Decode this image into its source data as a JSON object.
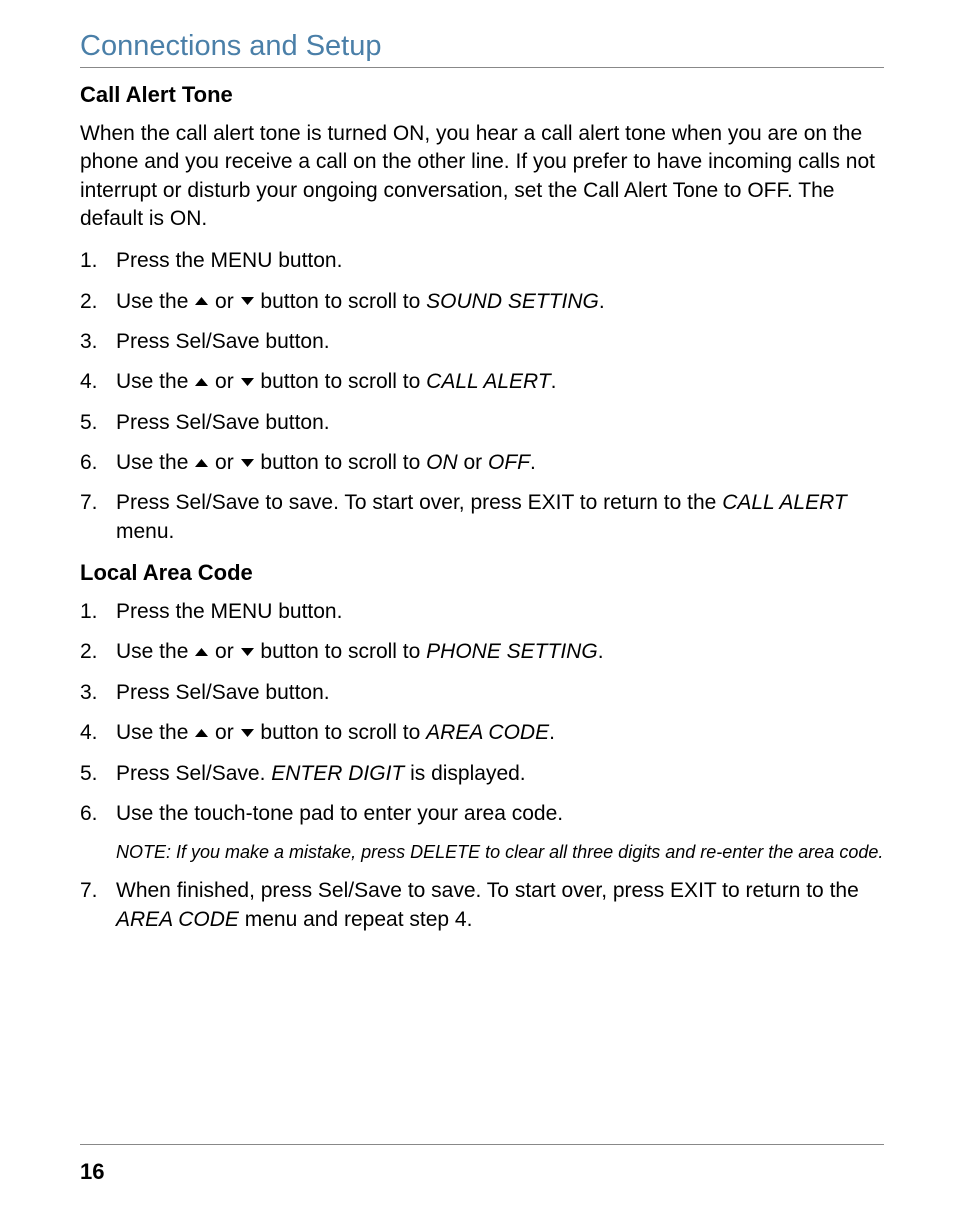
{
  "section_title": "Connections and Setup",
  "subsection1": {
    "heading": "Call Alert Tone",
    "intro": "When the call alert tone is turned ON, you hear a call alert tone when you are on the phone and you receive a call on the other line. If you prefer to have incoming calls not interrupt or disturb your ongoing conversation, set the Call Alert Tone to OFF. The default is ON.",
    "steps": [
      {
        "num": "1.",
        "prefix": "Press the MENU button.",
        "italic": "",
        "suffix": ""
      },
      {
        "num": "2.",
        "prefix": "Use the ",
        "arrows": true,
        "mid": " button to scroll to ",
        "italic": "SOUND SETTING",
        "suffix": "."
      },
      {
        "num": "3.",
        "prefix": "Press Sel/Save button.",
        "italic": "",
        "suffix": ""
      },
      {
        "num": "4.",
        "prefix": "Use the ",
        "arrows": true,
        "mid": " button to scroll to ",
        "italic": "CALL ALERT",
        "suffix": "."
      },
      {
        "num": "5.",
        "prefix": "Press Sel/Save button.",
        "italic": "",
        "suffix": ""
      },
      {
        "num": "6.",
        "prefix": "Use the ",
        "arrows": true,
        "mid": " button to scroll to ",
        "italic": "ON",
        "mid2": " or ",
        "italic2": "OFF",
        "suffix": "."
      },
      {
        "num": "7.",
        "prefix": "Press Sel/Save to save. To start over, press EXIT to return to the ",
        "italic": "CALL ALERT",
        "suffix": " menu."
      }
    ]
  },
  "subsection2": {
    "heading": "Local Area Code",
    "steps": [
      {
        "num": "1.",
        "prefix": "Press the MENU button.",
        "italic": "",
        "suffix": ""
      },
      {
        "num": "2.",
        "prefix": "Use the ",
        "arrows": true,
        "mid": " button to scroll to ",
        "italic": "PHONE SETTING",
        "suffix": "."
      },
      {
        "num": "3.",
        "prefix": "Press Sel/Save button.",
        "italic": "",
        "suffix": ""
      },
      {
        "num": "4.",
        "prefix": "Use the ",
        "arrows": true,
        "mid": " button to scroll to ",
        "italic": "AREA CODE",
        "suffix": "."
      },
      {
        "num": "5.",
        "prefix": "Press Sel/Save. ",
        "italic": "ENTER DIGIT",
        "suffix": " is displayed."
      },
      {
        "num": "6.",
        "prefix": "Use the touch-tone pad to enter your area code.",
        "italic": "",
        "suffix": ""
      }
    ],
    "note": "NOTE: If you make a mistake, press DELETE to clear all three digits and re-enter the area code.",
    "steps2": [
      {
        "num": "7.",
        "prefix": "When finished, press Sel/Save to save. To start over, press EXIT to return to the ",
        "italic": "AREA CODE",
        "suffix": " menu and repeat step 4."
      }
    ]
  },
  "arrow_or": " or ",
  "page_number": "16",
  "colors": {
    "title": "#4a7fa8",
    "text": "#000000",
    "rule": "#888888",
    "bg": "#ffffff"
  },
  "fonts": {
    "title_size": 29,
    "heading_size": 22,
    "body_size": 21,
    "note_size": 18,
    "page_num_size": 22
  }
}
